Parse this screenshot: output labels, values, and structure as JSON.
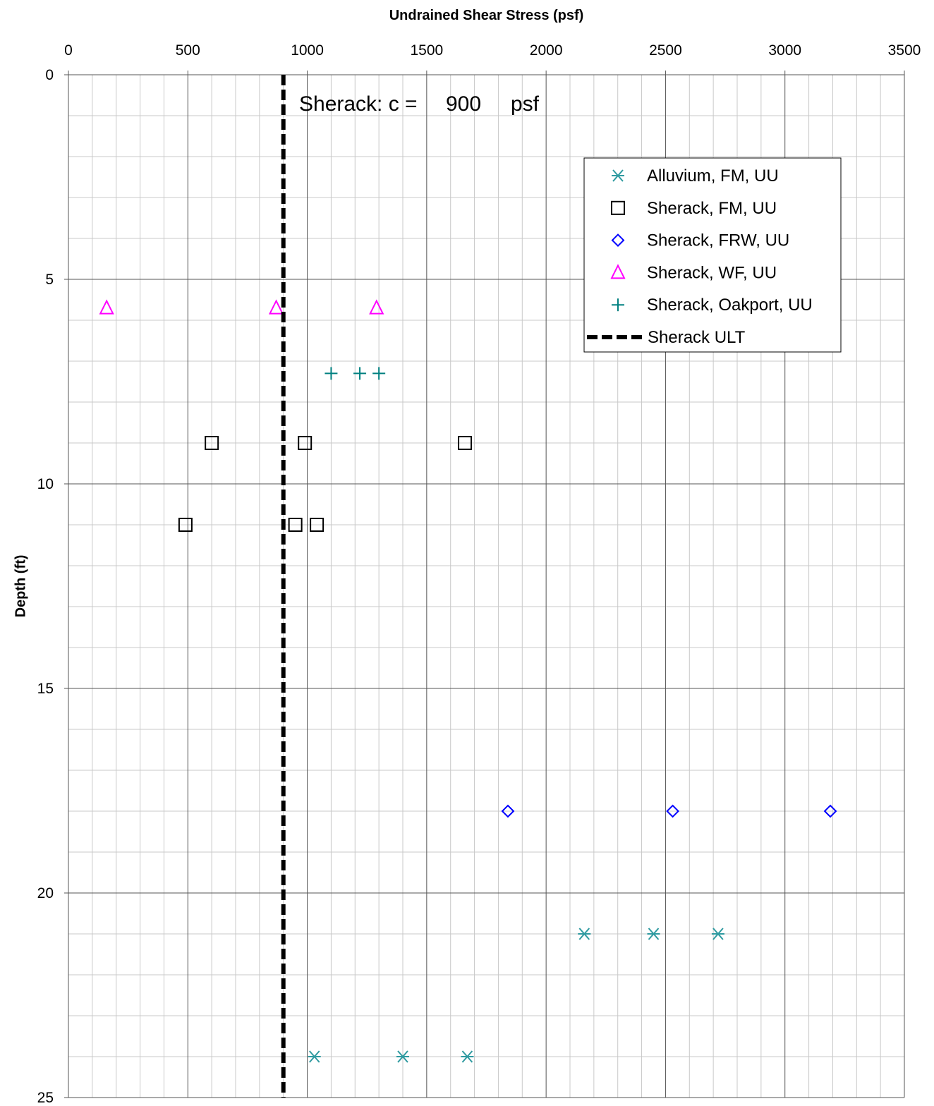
{
  "chart_data": {
    "type": "scatter",
    "orientation": "depth-profile",
    "xlabel": "Undrained Shear Stress (psf)",
    "ylabel": "Depth (ft)",
    "xlim": [
      0,
      3500
    ],
    "ylim": [
      0,
      25
    ],
    "y_inverted": true,
    "x_axis_position": "top",
    "x_ticks": [
      0,
      500,
      1000,
      1500,
      2000,
      2500,
      3000,
      3500
    ],
    "y_ticks": [
      0,
      5,
      10,
      15,
      20,
      25
    ],
    "x_minor_step": 100,
    "y_minor_step": 1,
    "grid": true,
    "legend_position": "top-right",
    "annotation": {
      "label": "Sherack: c =",
      "value": "900",
      "unit": "psf"
    },
    "series": [
      {
        "name": "Alluvium, FM, UU",
        "marker": "asterisk",
        "color": "#2e9aa0",
        "points": [
          [
            1030,
            24
          ],
          [
            1400,
            24
          ],
          [
            1670,
            24
          ],
          [
            2160,
            21
          ],
          [
            2450,
            21
          ],
          [
            2720,
            21
          ]
        ]
      },
      {
        "name": "Sherack, FM, UU",
        "marker": "square",
        "color": "#000000",
        "points": [
          [
            600,
            9
          ],
          [
            990,
            9
          ],
          [
            1660,
            9
          ],
          [
            490,
            11
          ],
          [
            950,
            11
          ],
          [
            1040,
            11
          ]
        ]
      },
      {
        "name": "Sherack, FRW, UU",
        "marker": "diamond",
        "color": "#0000ff",
        "points": [
          [
            1840,
            18
          ],
          [
            2530,
            18
          ],
          [
            3190,
            18
          ]
        ]
      },
      {
        "name": "Sherack, WF, UU",
        "marker": "triangle",
        "color": "#ff00ff",
        "points": [
          [
            160,
            5.7
          ],
          [
            870,
            5.7
          ],
          [
            1290,
            5.7
          ]
        ]
      },
      {
        "name": "Sherack, Oakport, UU",
        "marker": "plus",
        "color": "#008080",
        "points": [
          [
            1100,
            7.3
          ],
          [
            1220,
            7.3
          ],
          [
            1300,
            7.3
          ]
        ]
      },
      {
        "name": "Sherack ULT",
        "marker": "dashed-line",
        "color": "#000000",
        "points": [
          [
            900,
            0
          ],
          [
            900,
            25
          ]
        ]
      }
    ]
  }
}
